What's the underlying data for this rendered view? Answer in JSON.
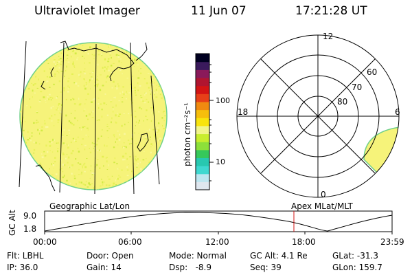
{
  "header": {
    "instrument": "Ultraviolet Imager",
    "date": "11 Jun 07",
    "time": "17:21:28 UT"
  },
  "colorbar": {
    "unit_label": "photon cm⁻²s⁻¹",
    "tick_100": "100",
    "tick_10": "10",
    "colors": [
      "#dfe7ef",
      "#bde6f0",
      "#3fd8d0",
      "#28c8b0",
      "#36c85a",
      "#8de03a",
      "#c8ee2e",
      "#f1f58a",
      "#f8e40d",
      "#f6be0c",
      "#f08a10",
      "#e74018",
      "#d31414",
      "#b01530",
      "#8a1a5a",
      "#3a1a5c",
      "#000020"
    ]
  },
  "left_map": {
    "caption": "Geographic Lat/Lon",
    "disk_color": "#f6f37a"
  },
  "polar": {
    "caption": "Apex MLat/MLT",
    "mlt_labels": {
      "top": "12",
      "bottom": "0",
      "left": "18",
      "right": "6"
    },
    "lat_labels": [
      "60",
      "70",
      "80"
    ]
  },
  "timeline": {
    "ylabel": "GC Alt",
    "ytick_high": "9.0",
    "ytick_low": "1.8",
    "xticks": [
      "00:00",
      "06:00",
      "12:00",
      "18:00",
      "23:59"
    ],
    "marker_color": "#d01010"
  },
  "status": {
    "flt": "Flt: LBHL",
    "ip": "IP: 36.0",
    "door": "Door: Open",
    "gain": "Gain: 14",
    "mode": "Mode: Normal",
    "dsp": "Dsp:   -8.9",
    "gc_alt": "GC Alt: 4.1 Re",
    "seq": "Seq: 39",
    "glat": "GLat: -31.3",
    "glon": "GLon: 159.7"
  }
}
